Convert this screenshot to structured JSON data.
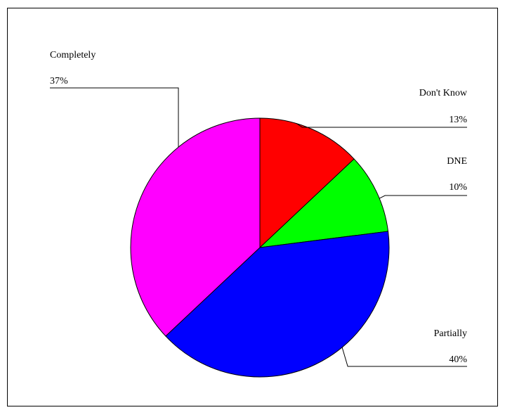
{
  "chart_data": {
    "type": "pie",
    "title": "",
    "slices": [
      {
        "label": "Don't Know",
        "pct_label": "13%",
        "value": 13,
        "color": "#ff0000"
      },
      {
        "label": "DNE",
        "pct_label": "10%",
        "value": 10,
        "color": "#00ff00"
      },
      {
        "label": "Partially",
        "pct_label": "40%",
        "value": 40,
        "color": "#0000ff"
      },
      {
        "label": "Completely",
        "pct_label": "37%",
        "value": 37,
        "color": "#ff00ff"
      }
    ],
    "legend": "none",
    "start_angle": "12 o'clock",
    "direction": "clockwise"
  }
}
